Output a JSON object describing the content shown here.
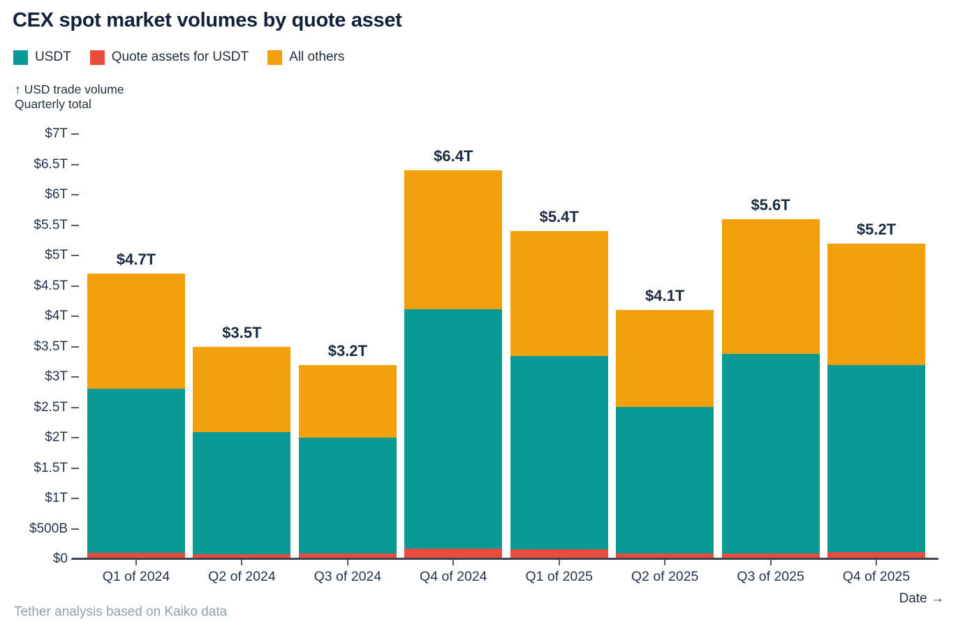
{
  "title": "CEX spot market volumes by quote asset",
  "legend": [
    {
      "label": "USDT",
      "color": "#0A9A96"
    },
    {
      "label": "Quote assets for USDT",
      "color": "#EA4B3C"
    },
    {
      "label": "All others",
      "color": "#F2A00C"
    }
  ],
  "y_axis_caption": {
    "line1": "↑ USD trade volume",
    "line2": "Quarterly total"
  },
  "x_axis_label": "Date →",
  "footer": "Tether analysis based on Kaiko data",
  "colors": {
    "usdt_teal": "#0A9A96",
    "quote_assets_red": "#EA4B3C",
    "all_others_orange": "#F2A00C",
    "title_text": "#14203A",
    "axis_text": "#24334A",
    "muted_text": "#90A0AC",
    "axis_line": "#39444E",
    "background": "#FFFFFF"
  },
  "chart_data": {
    "type": "bar",
    "stacked": true,
    "title": "CEX spot market volumes by quote asset",
    "xlabel": "Date",
    "ylabel": "USD trade volume, Quarterly total",
    "unit": "USD trillions",
    "ylim": [
      0,
      7
    ],
    "grid": false,
    "legend_position": "top-left",
    "categories": [
      "Q1 of 2024",
      "Q2 of 2024",
      "Q3 of 2024",
      "Q4 of 2024",
      "Q1 of 2025",
      "Q2 of 2025",
      "Q3 of 2025",
      "Q4 of 2025"
    ],
    "series": [
      {
        "name": "Quote assets for USDT",
        "color": "#EA4B3C",
        "values": [
          0.1,
          0.08,
          0.09,
          0.17,
          0.16,
          0.09,
          0.09,
          0.11
        ]
      },
      {
        "name": "USDT",
        "color": "#0A9A96",
        "values": [
          2.7,
          2.01,
          1.91,
          3.94,
          3.18,
          2.42,
          3.29,
          3.08
        ]
      },
      {
        "name": "All others",
        "color": "#F2A00C",
        "values": [
          1.9,
          1.41,
          1.2,
          2.29,
          2.06,
          1.59,
          2.22,
          2.01
        ]
      }
    ],
    "totals": {
      "labels": [
        "$4.7T",
        "$3.5T",
        "$3.2T",
        "$6.4T",
        "$5.4T",
        "$4.1T",
        "$5.6T",
        "$5.2T"
      ],
      "values": [
        4.7,
        3.5,
        3.2,
        6.4,
        5.4,
        4.1,
        5.6,
        5.2
      ]
    },
    "y_ticks": [
      {
        "value": 0,
        "label": "$0"
      },
      {
        "value": 0.5,
        "label": "$500B"
      },
      {
        "value": 1,
        "label": "$1T"
      },
      {
        "value": 1.5,
        "label": "$1.5T"
      },
      {
        "value": 2,
        "label": "$2T"
      },
      {
        "value": 2.5,
        "label": "$2.5T"
      },
      {
        "value": 3,
        "label": "$3T"
      },
      {
        "value": 3.5,
        "label": "$3.5T"
      },
      {
        "value": 4,
        "label": "$4T"
      },
      {
        "value": 4.5,
        "label": "$4.5T"
      },
      {
        "value": 5,
        "label": "$5T"
      },
      {
        "value": 5.5,
        "label": "$5.5T"
      },
      {
        "value": 6,
        "label": "$6T"
      },
      {
        "value": 6.5,
        "label": "$6.5T"
      },
      {
        "value": 7,
        "label": "$7T"
      }
    ]
  }
}
